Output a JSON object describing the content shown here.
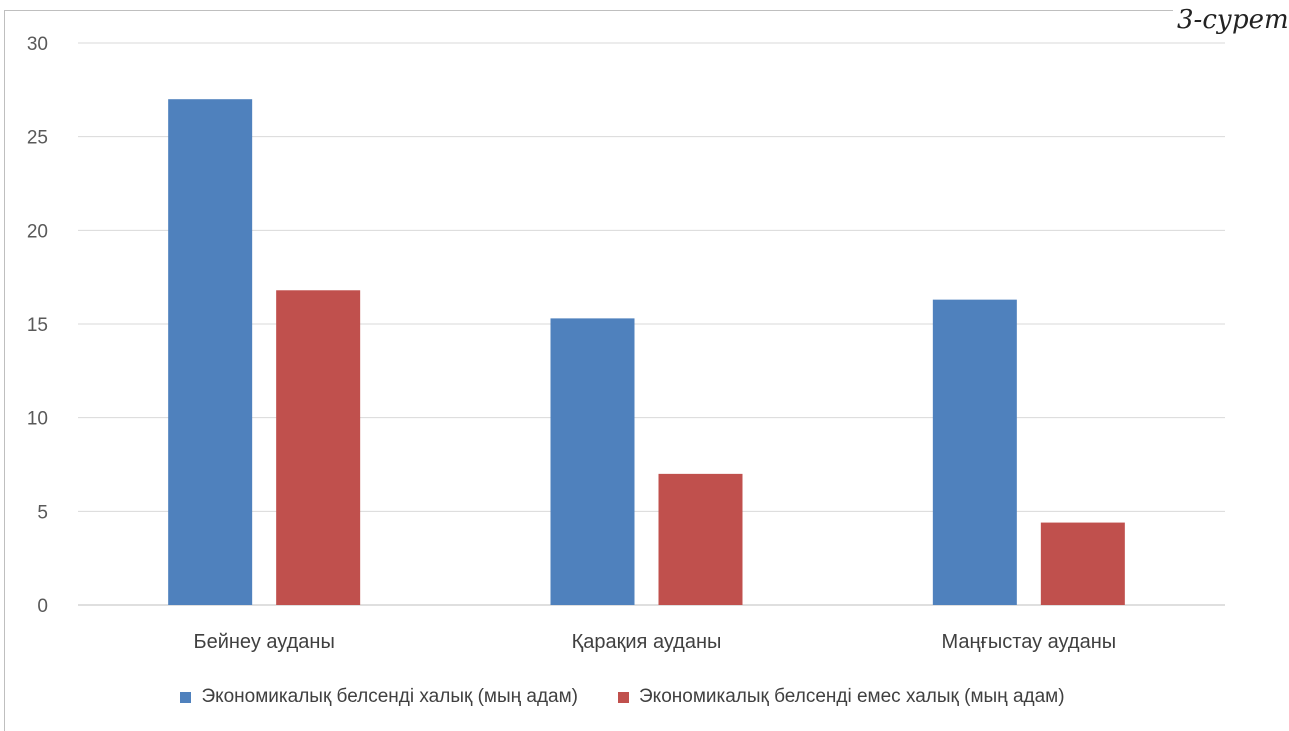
{
  "corner_label": "3-сурет",
  "chart_data": {
    "type": "bar",
    "categories": [
      "Бейнеу ауданы",
      "Қарақия ауданы",
      "Маңғыстау ауданы"
    ],
    "series": [
      {
        "name": "Экономикалық белсенді халық (мың адам)",
        "color": "#4f81bd",
        "values": [
          27,
          15.3,
          16.3
        ]
      },
      {
        "name": "Экономикалық белсенді емес халық (мың адам)",
        "color": "#c0504d",
        "values": [
          16.8,
          7,
          4.4
        ]
      }
    ],
    "title": "",
    "xlabel": "",
    "ylabel": "",
    "ylim": [
      0,
      30
    ],
    "yticks": [
      "0",
      "5",
      "10",
      "15",
      "20",
      "25",
      "30"
    ],
    "grid": true,
    "legend_position": "bottom"
  }
}
